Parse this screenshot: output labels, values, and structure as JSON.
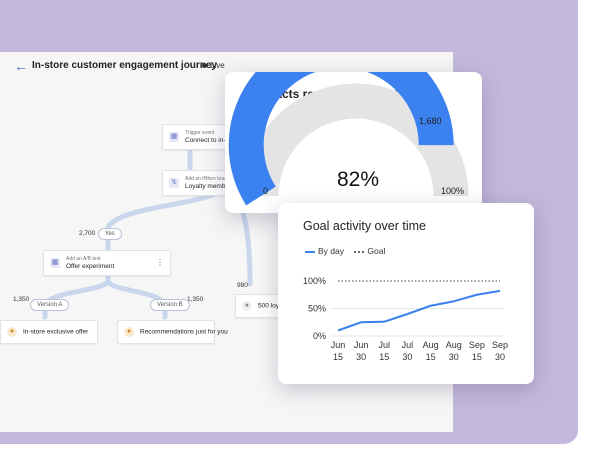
{
  "journey": {
    "title": "In-store customer engagement journey",
    "status": "Live",
    "nodes": {
      "trigger": {
        "small": "Trigger event",
        "main": "Connect to in-store"
      },
      "branch": {
        "small": "Add an if/then branch",
        "main": "Loyalty member"
      },
      "abtest": {
        "small": "Add an A/B test",
        "main": "Offer experiment"
      },
      "exclusive": {
        "main": "In-store exclusive offer"
      },
      "recommend": {
        "main": "Recommendations just for you"
      },
      "loyalty": {
        "main": "500 loyalty"
      }
    },
    "counts": {
      "yes": "2,700",
      "a": "1,350",
      "b": "1,350",
      "right": "980"
    },
    "pills": {
      "yes": "Yes",
      "a": "Version A",
      "b": "Version B"
    }
  },
  "gauge_card": {
    "title": "Contacts reached the goal",
    "min_label": "0",
    "max_label": "1,680",
    "end_label": "100%",
    "center_value": "82%",
    "fraction": 0.82,
    "fill_color": "#3b82f0",
    "track_color": "#e4e4e4"
  },
  "activity_card": {
    "title": "Goal activity over time",
    "legend": {
      "by_day": "By day",
      "goal": "Goal"
    }
  },
  "chart_data": {
    "type": "line",
    "x": [
      "Jun 15",
      "Jun 30",
      "Jul 15",
      "Jul 30",
      "Aug 15",
      "Aug 30",
      "Sep 15",
      "Sep 30"
    ],
    "x_ticks": [
      {
        "month": "Jun",
        "day": "15"
      },
      {
        "month": "Jun",
        "day": "30"
      },
      {
        "month": "Jul",
        "day": "15"
      },
      {
        "month": "Jul",
        "day": "30"
      },
      {
        "month": "Aug",
        "day": "15"
      },
      {
        "month": "Aug",
        "day": "30"
      },
      {
        "month": "Sep",
        "day": "15"
      },
      {
        "month": "Sep",
        "day": "30"
      }
    ],
    "y_ticks": [
      "100%",
      "50%",
      "0%"
    ],
    "ylim": [
      0,
      100
    ],
    "series": [
      {
        "name": "By day",
        "color": "#3b82f0",
        "values": [
          10,
          25,
          26,
          40,
          55,
          63,
          75,
          82
        ]
      },
      {
        "name": "Goal",
        "color": "#666666",
        "style": "dotted",
        "values": [
          100,
          100,
          100,
          100,
          100,
          100,
          100,
          100
        ]
      }
    ]
  }
}
